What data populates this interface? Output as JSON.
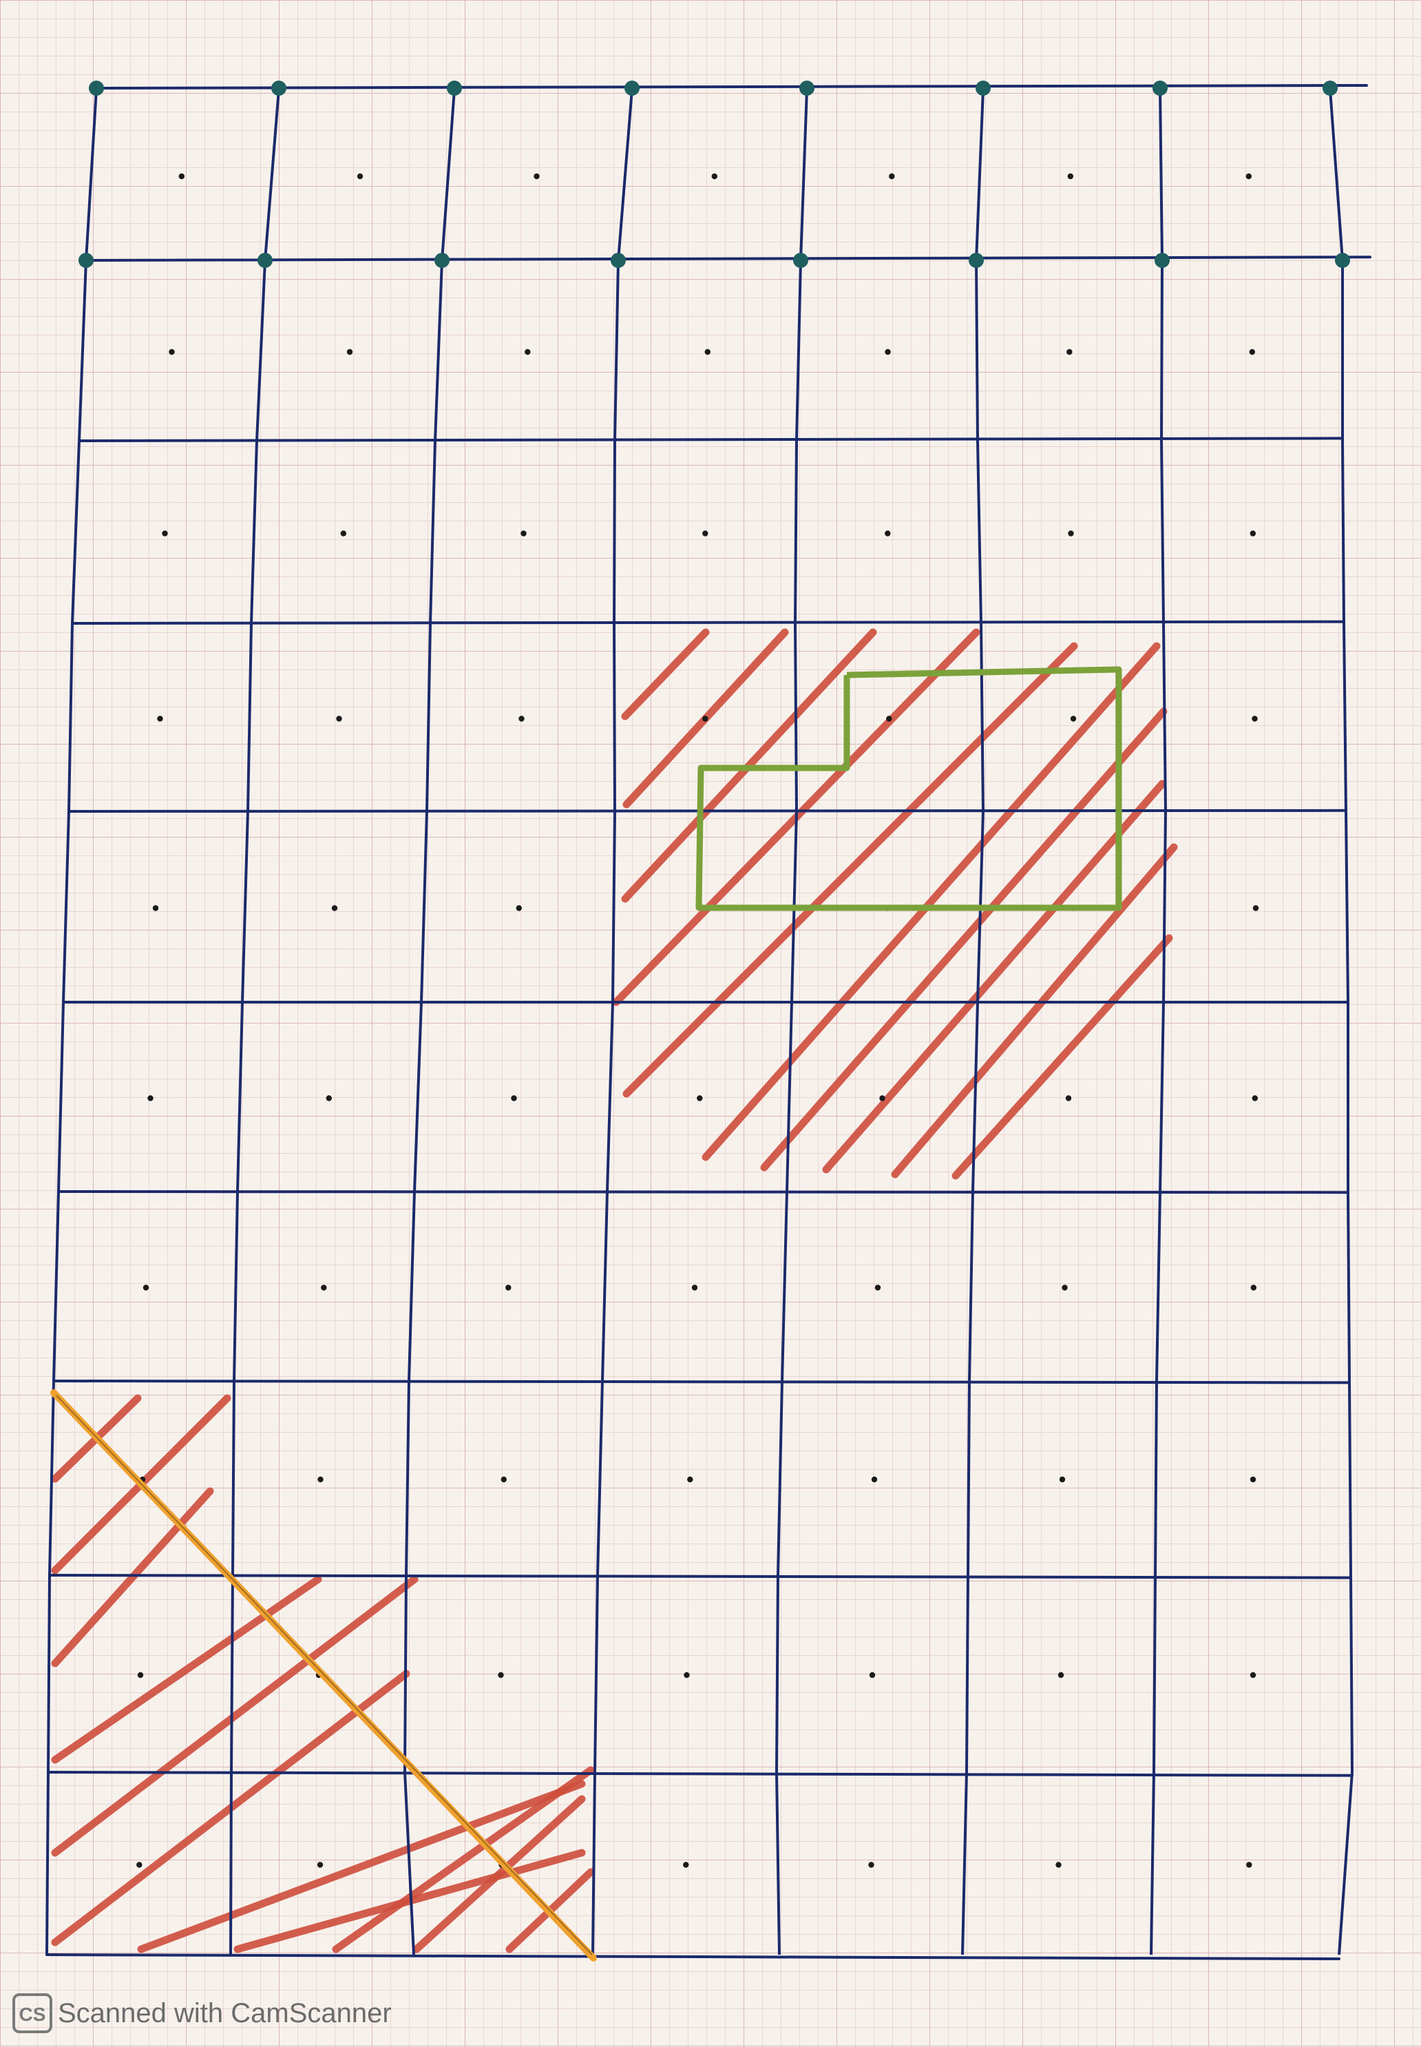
{
  "watermark": {
    "text": "Scanned with CamScanner",
    "logo_letters": "CS"
  },
  "colors": {
    "paper": "#f7f1ec",
    "fine_grid": "#d9b6b6",
    "fine_grid_major": "#c99b9b",
    "ink_lines": "#1b2a6b",
    "teal_dots": "#1f5f5f",
    "hatch_red": "#cf4e3c",
    "outline_green": "#7ba23a",
    "diagonal_orange": "#f0a12e",
    "center_dots": "#1a1a1a",
    "watermark_text": "#6b6b6b"
  },
  "icons": {
    "watermark_logo": "camscanner-logo-icon"
  }
}
